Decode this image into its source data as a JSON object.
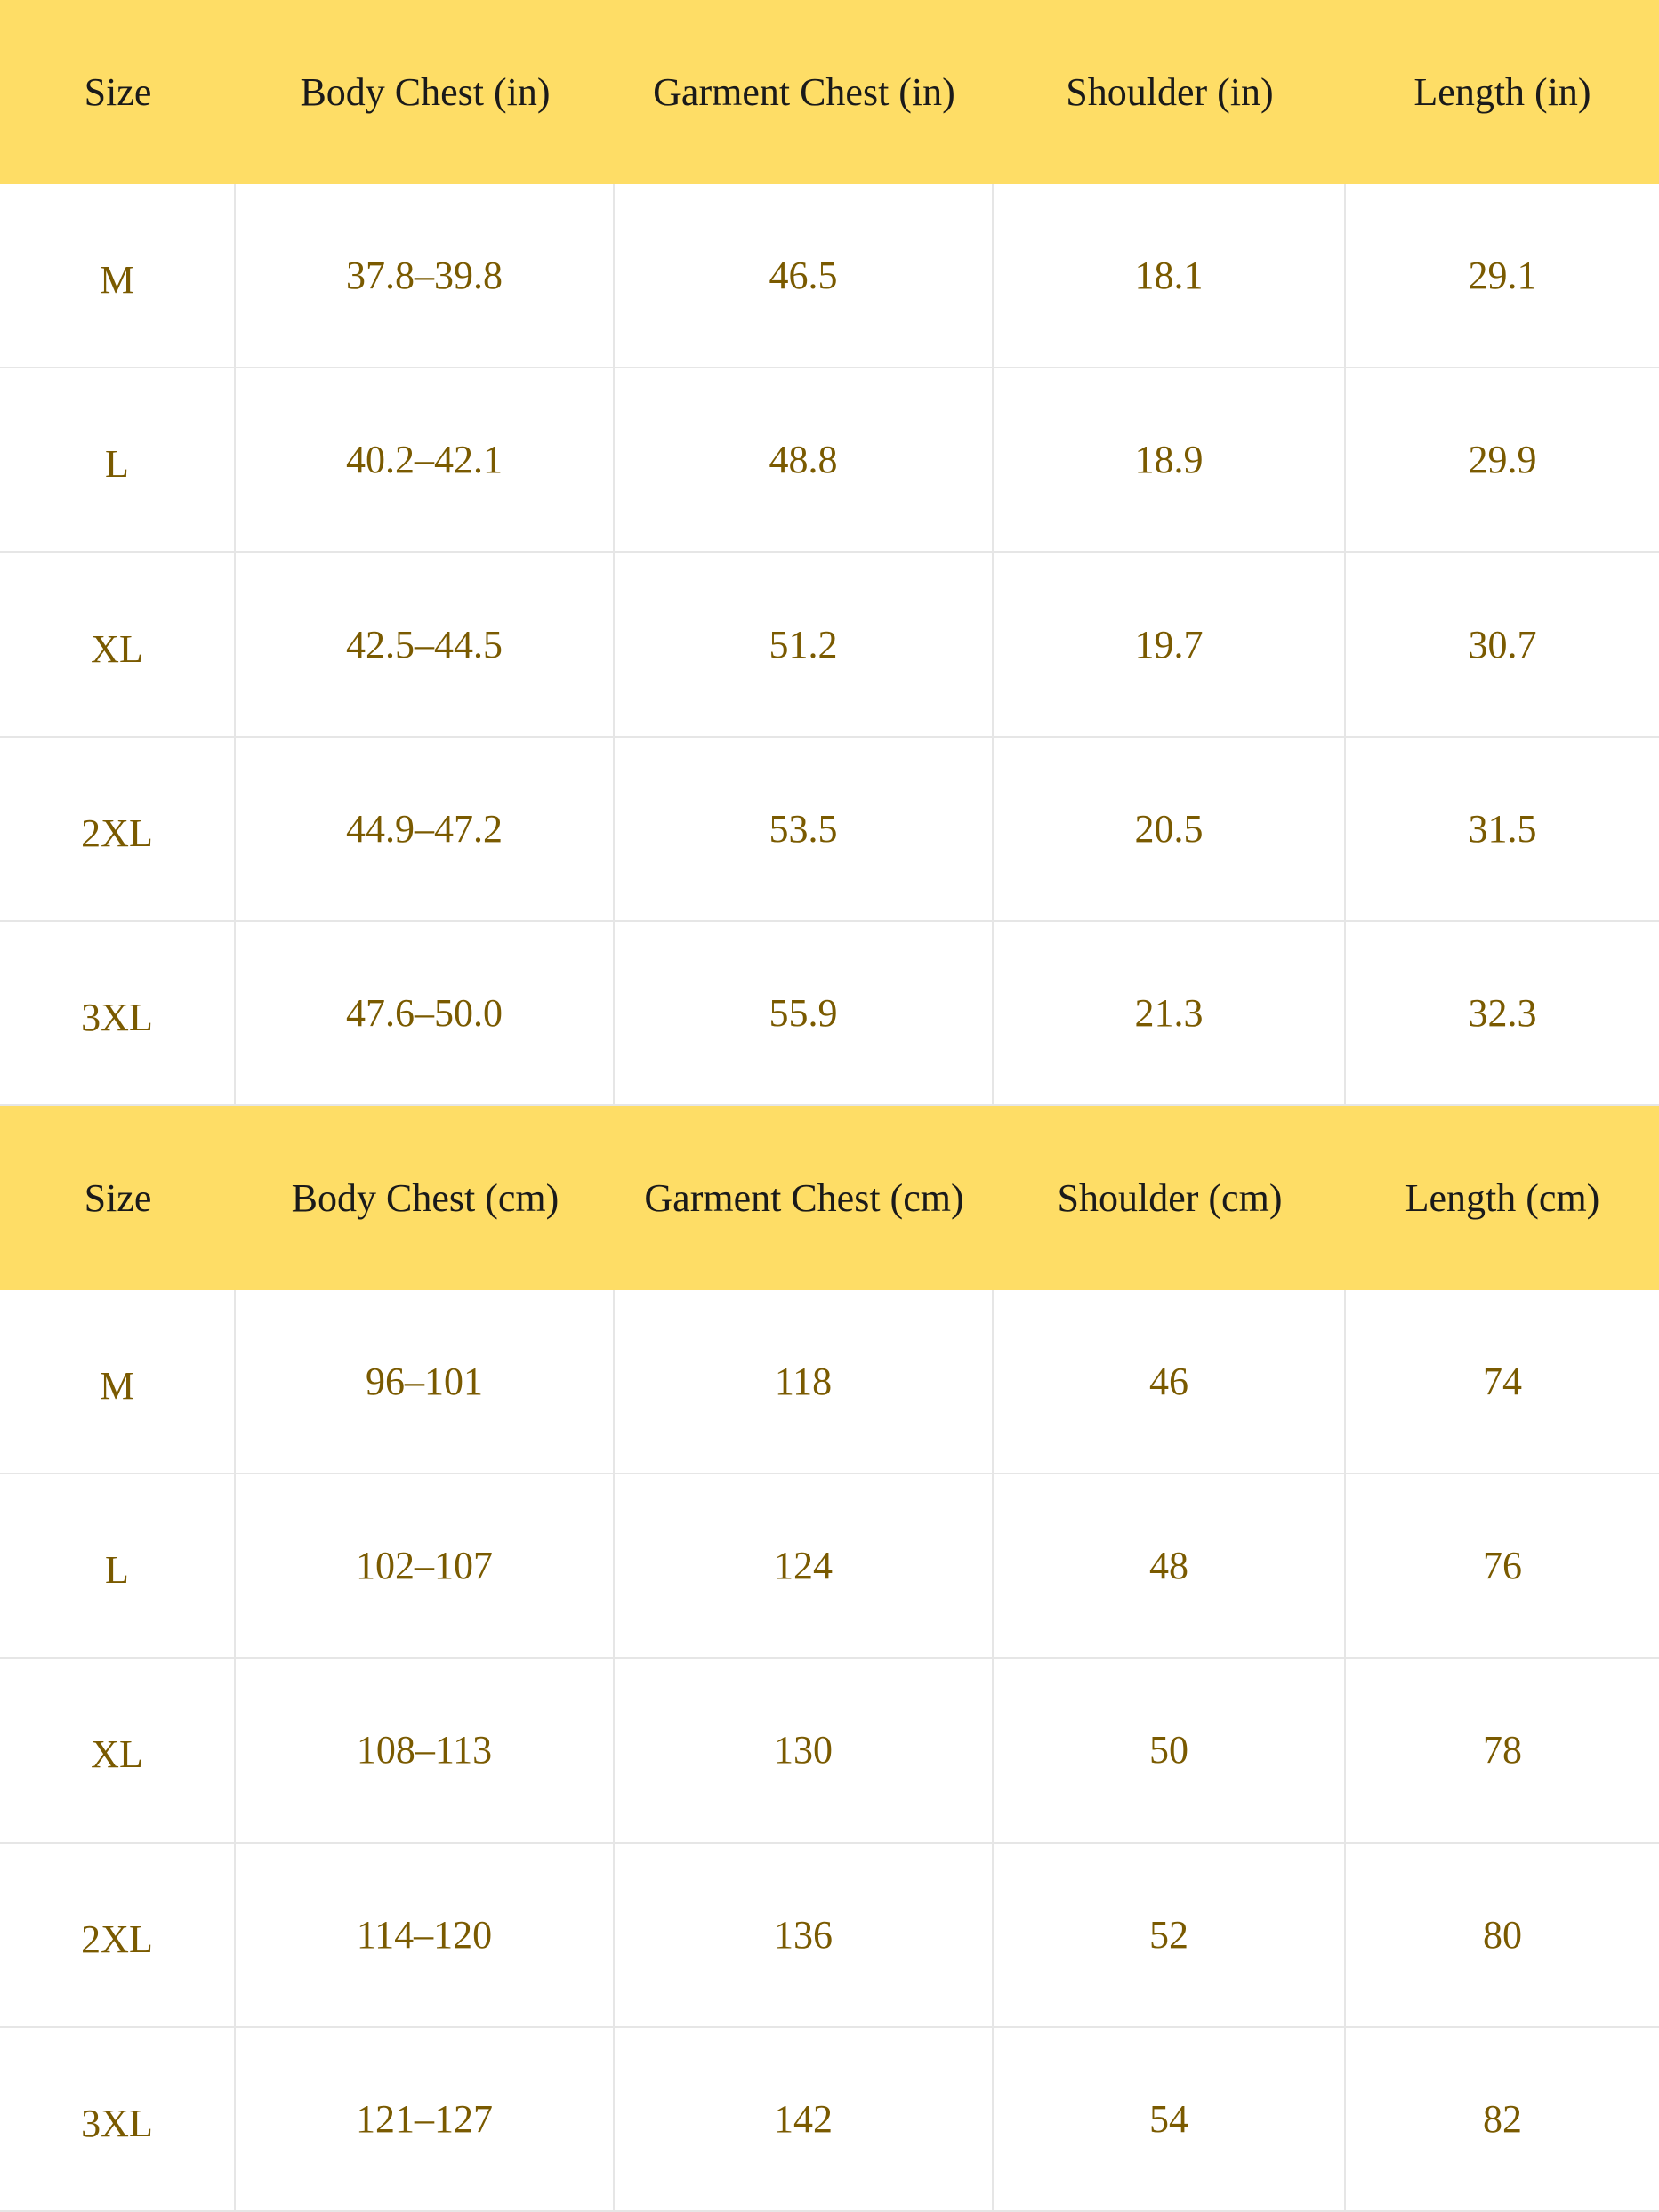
{
  "tables": [
    {
      "header": [
        "Size",
        "Body Chest (in)",
        "Garment Chest (in)",
        "Shoulder (in)",
        "Length (in)"
      ],
      "rows": [
        [
          "M",
          "37.8–39.8",
          "46.5",
          "18.1",
          "29.1"
        ],
        [
          "L",
          "40.2–42.1",
          "48.8",
          "18.9",
          "29.9"
        ],
        [
          "XL",
          "42.5–44.5",
          "51.2",
          "19.7",
          "30.7"
        ],
        [
          "2XL",
          "44.9–47.2",
          "53.5",
          "20.5",
          "31.5"
        ],
        [
          "3XL",
          "47.6–50.0",
          "55.9",
          "21.3",
          "32.3"
        ]
      ]
    },
    {
      "header": [
        "Size",
        "Body Chest (cm)",
        "Garment Chest (cm)",
        "Shoulder (cm)",
        "Length (cm)"
      ],
      "rows": [
        [
          "M",
          "96–101",
          "118",
          "46",
          "74"
        ],
        [
          "L",
          "102–107",
          "124",
          "48",
          "76"
        ],
        [
          "XL",
          "108–113",
          "130",
          "50",
          "78"
        ],
        [
          "2XL",
          "114–120",
          "136",
          "52",
          "80"
        ],
        [
          "3XL",
          "121–127",
          "142",
          "54",
          "82"
        ]
      ]
    }
  ]
}
